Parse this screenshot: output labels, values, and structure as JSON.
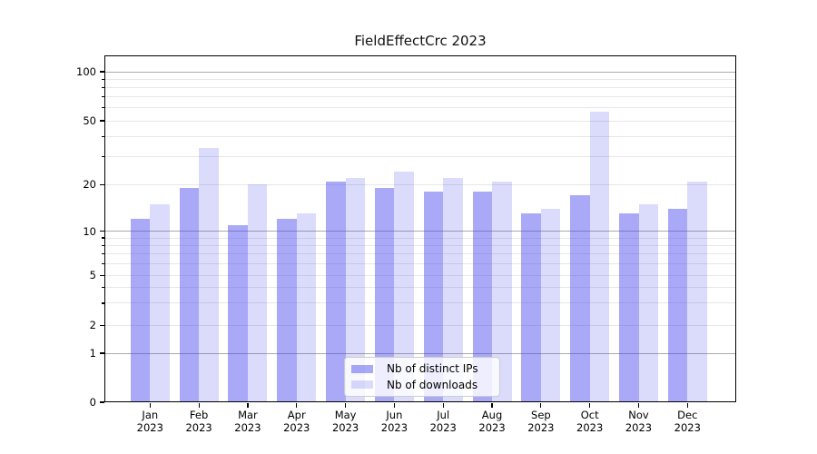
{
  "chart_data": {
    "type": "bar",
    "title": "FieldEffectCrc 2023",
    "categories": [
      "Jan\n2023",
      "Feb\n2023",
      "Mar\n2023",
      "Apr\n2023",
      "May\n2023",
      "Jun\n2023",
      "Jul\n2023",
      "Aug\n2023",
      "Sep\n2023",
      "Oct\n2023",
      "Nov\n2023",
      "Dec\n2023"
    ],
    "series": [
      {
        "key": "distinct-ips",
        "name": "Nb of distinct IPs",
        "color": "rgba(64,64,238,0.45)",
        "values": [
          12,
          19,
          11,
          12,
          21,
          19,
          18,
          18,
          13,
          17,
          13,
          14
        ]
      },
      {
        "key": "downloads",
        "name": "Nb of downloads",
        "color": "rgba(64,64,238,0.19)",
        "values": [
          15,
          34,
          20,
          13,
          22,
          24,
          22,
          21,
          14,
          57,
          15,
          21
        ]
      }
    ],
    "y_axis": {
      "scale": "symlog",
      "tick_values": [
        100,
        50,
        20,
        10,
        5,
        2,
        1,
        0
      ],
      "tick_labels": [
        "100",
        "50",
        "20",
        "10",
        "5",
        "2",
        "1",
        "0"
      ],
      "range": [
        0,
        100
      ]
    },
    "grid": {
      "major_lines": [
        1,
        10,
        100
      ],
      "minor_lines": [
        2,
        3,
        4,
        5,
        6,
        7,
        8,
        9,
        20,
        30,
        40,
        50,
        60,
        70,
        80,
        90
      ],
      "minor_tick_marks": [
        3,
        4,
        6,
        7,
        8,
        9,
        30,
        40,
        60,
        70,
        80,
        90
      ],
      "major_color": "#ababab",
      "minor_color": "#e7e7e7"
    },
    "legend": {
      "position": "lower center",
      "entries": [
        "Nb of distinct IPs",
        "Nb of downloads"
      ]
    }
  }
}
